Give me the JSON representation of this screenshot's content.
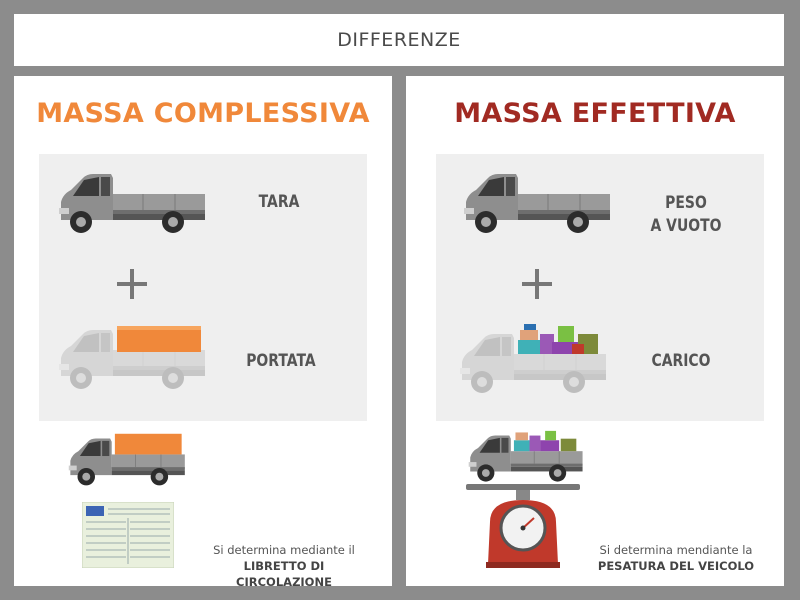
{
  "header": {
    "title": "DIFFERENZE"
  },
  "left": {
    "title": "MASSA COMPLESSIVA",
    "title_color": "#f0883a",
    "label_top": "TARA",
    "label_bottom": "PORTATA",
    "caption_line1": "Si determina mediante il",
    "caption_line2": "LIBRETTO DI CIRCOLAZIONE",
    "icons": [
      "pickup-truck-icon",
      "plus-icon",
      "cargo-box-icon",
      "registration-document-icon"
    ]
  },
  "right": {
    "title": "MASSA EFFETTIVA",
    "title_color": "#a12a22",
    "label_top_line1": "PESO",
    "label_top_line2": "A VUOTO",
    "label_bottom": "CARICO",
    "caption_line1": "Si determina mendiante la",
    "caption_line2": "PESATURA DEL VEICOLO",
    "icons": [
      "pickup-truck-icon",
      "plus-icon",
      "mixed-cargo-icon",
      "weighing-scale-icon"
    ]
  },
  "colors": {
    "background": "#8c8c8c",
    "panel": "#ffffff",
    "box": "#efefef",
    "cargo_orange": "#f0883a",
    "scale_red": "#c0392b"
  }
}
